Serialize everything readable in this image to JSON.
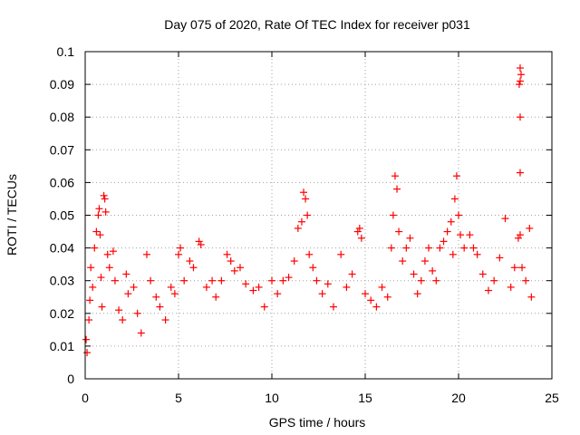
{
  "chart_data": {
    "type": "scatter",
    "title": "Day 075 of 2020, Rate Of TEC Index for receiver p031",
    "xlabel": "GPS time / hours",
    "ylabel": "ROTI / TECUs",
    "xlim": [
      0,
      25
    ],
    "ylim": [
      0,
      0.1
    ],
    "x_ticks": [
      "0",
      "5",
      "10",
      "15",
      "20",
      "25"
    ],
    "y_ticks": [
      "0",
      "0.01",
      "0.02",
      "0.03",
      "0.04",
      "0.05",
      "0.06",
      "0.07",
      "0.08",
      "0.09",
      "0.1"
    ],
    "grid": true,
    "marker": "+",
    "series_color": "#ff0000",
    "series": [
      {
        "name": "ROTI",
        "points": [
          [
            0.05,
            0.012
          ],
          [
            0.1,
            0.008
          ],
          [
            0.2,
            0.018
          ],
          [
            0.25,
            0.024
          ],
          [
            0.3,
            0.034
          ],
          [
            0.4,
            0.028
          ],
          [
            0.5,
            0.04
          ],
          [
            0.6,
            0.045
          ],
          [
            0.7,
            0.05
          ],
          [
            0.75,
            0.052
          ],
          [
            0.8,
            0.044
          ],
          [
            0.85,
            0.031
          ],
          [
            0.9,
            0.022
          ],
          [
            1.0,
            0.056
          ],
          [
            1.05,
            0.055
          ],
          [
            1.1,
            0.051
          ],
          [
            1.2,
            0.038
          ],
          [
            1.3,
            0.034
          ],
          [
            1.5,
            0.039
          ],
          [
            1.6,
            0.03
          ],
          [
            1.8,
            0.021
          ],
          [
            2.0,
            0.018
          ],
          [
            2.2,
            0.032
          ],
          [
            2.3,
            0.026
          ],
          [
            2.6,
            0.028
          ],
          [
            2.8,
            0.02
          ],
          [
            3.0,
            0.014
          ],
          [
            3.3,
            0.038
          ],
          [
            3.5,
            0.03
          ],
          [
            3.8,
            0.025
          ],
          [
            4.0,
            0.022
          ],
          [
            4.3,
            0.018
          ],
          [
            4.6,
            0.028
          ],
          [
            4.8,
            0.026
          ],
          [
            5.0,
            0.038
          ],
          [
            5.1,
            0.04
          ],
          [
            5.3,
            0.03
          ],
          [
            5.6,
            0.036
          ],
          [
            5.8,
            0.034
          ],
          [
            6.1,
            0.042
          ],
          [
            6.2,
            0.041
          ],
          [
            6.5,
            0.028
          ],
          [
            6.8,
            0.03
          ],
          [
            7.0,
            0.025
          ],
          [
            7.3,
            0.03
          ],
          [
            7.6,
            0.038
          ],
          [
            7.8,
            0.036
          ],
          [
            8.0,
            0.033
          ],
          [
            8.3,
            0.034
          ],
          [
            8.6,
            0.029
          ],
          [
            9.0,
            0.027
          ],
          [
            9.3,
            0.028
          ],
          [
            9.6,
            0.022
          ],
          [
            10.0,
            0.03
          ],
          [
            10.3,
            0.026
          ],
          [
            10.6,
            0.03
          ],
          [
            10.9,
            0.031
          ],
          [
            11.2,
            0.036
          ],
          [
            11.4,
            0.046
          ],
          [
            11.6,
            0.048
          ],
          [
            11.7,
            0.057
          ],
          [
            11.8,
            0.055
          ],
          [
            11.9,
            0.05
          ],
          [
            12.0,
            0.038
          ],
          [
            12.2,
            0.034
          ],
          [
            12.4,
            0.03
          ],
          [
            12.7,
            0.026
          ],
          [
            13.0,
            0.029
          ],
          [
            13.3,
            0.022
          ],
          [
            13.7,
            0.038
          ],
          [
            14.0,
            0.028
          ],
          [
            14.3,
            0.032
          ],
          [
            14.6,
            0.045
          ],
          [
            14.7,
            0.046
          ],
          [
            14.8,
            0.043
          ],
          [
            15.0,
            0.026
          ],
          [
            15.3,
            0.024
          ],
          [
            15.6,
            0.022
          ],
          [
            15.9,
            0.028
          ],
          [
            16.2,
            0.025
          ],
          [
            16.4,
            0.04
          ],
          [
            16.5,
            0.05
          ],
          [
            16.6,
            0.062
          ],
          [
            16.7,
            0.058
          ],
          [
            16.8,
            0.045
          ],
          [
            17.0,
            0.036
          ],
          [
            17.2,
            0.04
          ],
          [
            17.4,
            0.043
          ],
          [
            17.6,
            0.032
          ],
          [
            17.8,
            0.026
          ],
          [
            18.0,
            0.03
          ],
          [
            18.2,
            0.036
          ],
          [
            18.4,
            0.04
          ],
          [
            18.6,
            0.033
          ],
          [
            18.8,
            0.03
          ],
          [
            19.0,
            0.04
          ],
          [
            19.2,
            0.042
          ],
          [
            19.4,
            0.045
          ],
          [
            19.6,
            0.048
          ],
          [
            19.7,
            0.038
          ],
          [
            19.8,
            0.055
          ],
          [
            19.9,
            0.062
          ],
          [
            20.0,
            0.05
          ],
          [
            20.1,
            0.044
          ],
          [
            20.3,
            0.04
          ],
          [
            20.6,
            0.044
          ],
          [
            20.8,
            0.04
          ],
          [
            21.0,
            0.038
          ],
          [
            21.3,
            0.032
          ],
          [
            21.6,
            0.027
          ],
          [
            21.9,
            0.03
          ],
          [
            22.2,
            0.037
          ],
          [
            22.5,
            0.049
          ],
          [
            22.8,
            0.028
          ],
          [
            23.0,
            0.034
          ],
          [
            23.2,
            0.043
          ],
          [
            23.3,
            0.044
          ],
          [
            23.4,
            0.034
          ],
          [
            23.3,
            0.063
          ],
          [
            23.3,
            0.08
          ],
          [
            23.25,
            0.09
          ],
          [
            23.3,
            0.091
          ],
          [
            23.35,
            0.093
          ],
          [
            23.3,
            0.095
          ],
          [
            23.6,
            0.03
          ],
          [
            23.8,
            0.046
          ],
          [
            23.9,
            0.025
          ]
        ]
      }
    ]
  }
}
